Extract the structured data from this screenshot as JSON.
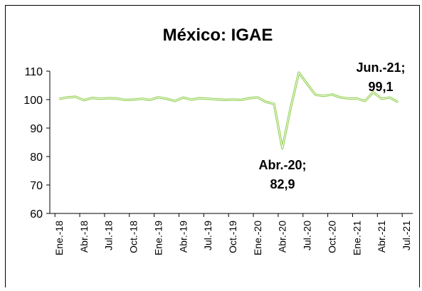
{
  "chart_data": {
    "type": "line",
    "title": "México: IGAE",
    "categories": [
      "Ene.-18",
      null,
      null,
      "Abr.-18",
      null,
      null,
      "Jul.-18",
      null,
      null,
      "Oct.-18",
      null,
      null,
      "Ene.-19",
      null,
      null,
      "Abr.-19",
      null,
      null,
      "Jul.-19",
      null,
      null,
      "Oct.-19",
      null,
      null,
      "Ene.-20",
      null,
      null,
      "Abr.-20",
      null,
      null,
      "Jul.-20",
      null,
      null,
      "Oct.-20",
      null,
      null,
      "Ene.-21",
      null,
      null,
      "Abr.-21",
      null,
      null,
      "Jul.-21"
    ],
    "series": [
      {
        "name": "IGAE",
        "color": "#92d050",
        "values": [
          100.2,
          100.8,
          101.0,
          99.8,
          100.6,
          100.3,
          100.5,
          100.4,
          99.9,
          100.0,
          100.3,
          99.9,
          100.8,
          100.3,
          99.5,
          100.7,
          100.0,
          100.5,
          100.3,
          100.1,
          99.9,
          100.0,
          99.9,
          100.5,
          100.8,
          99.2,
          98.5,
          82.9,
          97.0,
          109.5,
          105.5,
          101.7,
          101.3,
          101.8,
          100.8,
          100.4,
          100.4,
          99.5,
          102.6,
          100.3,
          100.7,
          99.1,
          null
        ]
      }
    ],
    "annotations": [
      [
        "Abr.-20;",
        "82,9"
      ],
      [
        "Jun.-21;",
        "99,1"
      ]
    ],
    "ylim": [
      60,
      110
    ],
    "yticks": [
      60,
      70,
      80,
      90,
      100,
      110
    ],
    "grid": false
  }
}
